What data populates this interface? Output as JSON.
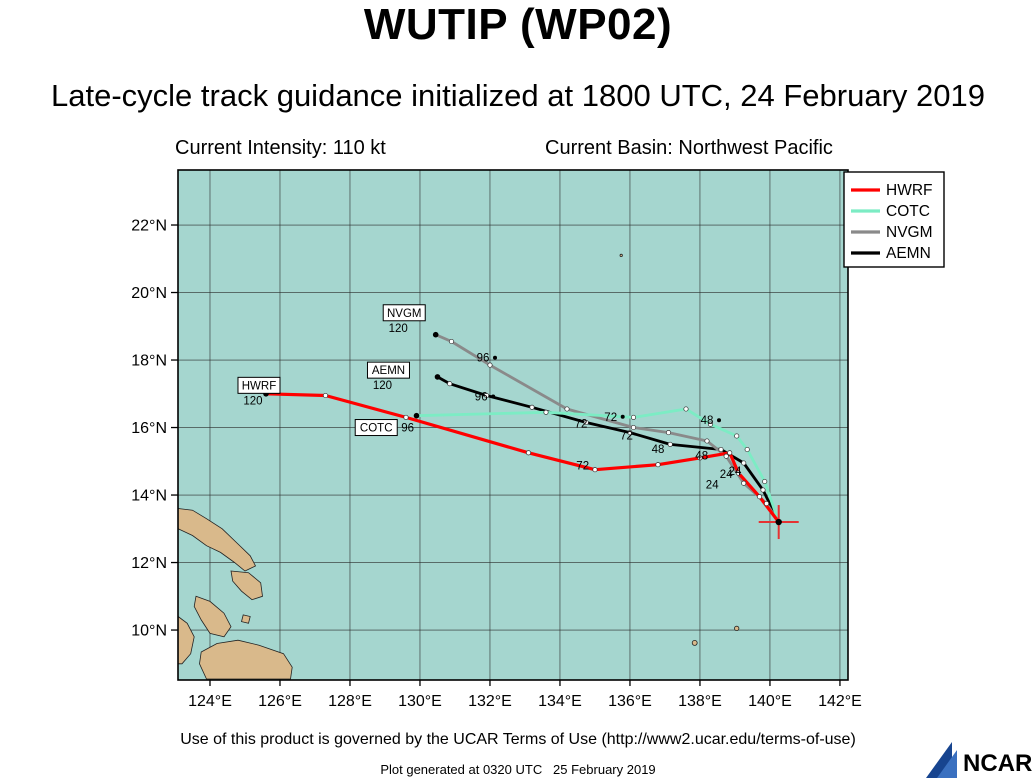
{
  "header": {
    "title": "WUTIP (WP02)",
    "subtitle": "Late-cycle track guidance initialized at 1800 UTC, 24 February 2019",
    "intensity": "Current Intensity: 110 kt",
    "basin": "Current Basin: Northwest Pacific"
  },
  "footer": {
    "terms": "Use of this product is governed by the UCAR Terms of Use (http://www2.ucar.edu/terms-of-use)",
    "generated": "Plot generated at 0320 UTC   25 February 2019",
    "logo_text": "NCAR"
  },
  "chart_data": {
    "type": "line",
    "subtype": "storm-track-map",
    "title": "WUTIP (WP02) late-cycle track guidance",
    "storm_id": "WP02",
    "storm_name": "WUTIP",
    "current_intensity_kt": 110,
    "current_basin": "Northwest Pacific",
    "init_time": "1800 UTC, 24 February 2019",
    "sea_color": "#a5d6cf",
    "land_color": "#d9b98b",
    "x_axis": {
      "suffix": "°E",
      "ticks": [
        124,
        126,
        128,
        130,
        132,
        134,
        136,
        138,
        140,
        142
      ],
      "range": [
        123.086,
        142.23
      ]
    },
    "y_axis": {
      "suffix": "°N",
      "ticks": [
        10,
        12,
        14,
        16,
        18,
        20,
        22
      ],
      "range": [
        8.52,
        23.63
      ]
    },
    "grid": true,
    "legend_position": "top-right",
    "legend": [
      {
        "label": "HWRF",
        "color": "#ff0000"
      },
      {
        "label": "COTC",
        "color": "#7cecc4"
      },
      {
        "label": "NVGM",
        "color": "#8a8a8a"
      },
      {
        "label": "AEMN",
        "color": "#000000"
      }
    ],
    "initial_position": {
      "lon": 140.25,
      "lat": 13.2
    },
    "series": [
      {
        "name": "HWRF",
        "color": "#ff0000",
        "hours": [
          0,
          12,
          24,
          36,
          48,
          60,
          72,
          84,
          96,
          108,
          120
        ],
        "track": [
          [
            140.25,
            13.2
          ],
          [
            139.7,
            13.95
          ],
          [
            139.1,
            14.65
          ],
          [
            138.85,
            15.25
          ],
          [
            138.0,
            15.1
          ],
          [
            136.8,
            14.9
          ],
          [
            135.0,
            14.75
          ],
          [
            133.1,
            15.25
          ],
          [
            129.6,
            16.3
          ],
          [
            127.3,
            16.95
          ],
          [
            125.6,
            17.0
          ]
        ]
      },
      {
        "name": "COTC",
        "color": "#7cecc4",
        "hours": [
          0,
          12,
          24,
          36,
          48,
          60,
          72,
          84,
          96
        ],
        "track": [
          [
            140.25,
            13.2
          ],
          [
            139.85,
            14.4
          ],
          [
            139.35,
            15.35
          ],
          [
            139.05,
            15.75
          ],
          [
            138.3,
            16.1
          ],
          [
            137.6,
            16.55
          ],
          [
            136.1,
            16.3
          ],
          [
            133.6,
            16.45
          ],
          [
            129.9,
            16.35
          ]
        ]
      },
      {
        "name": "NVGM",
        "color": "#8a8a8a",
        "hours": [
          0,
          12,
          24,
          36,
          48,
          60,
          72,
          84,
          96,
          108,
          120
        ],
        "track": [
          [
            140.25,
            13.2
          ],
          [
            139.9,
            13.75
          ],
          [
            139.25,
            14.35
          ],
          [
            138.75,
            15.15
          ],
          [
            138.2,
            15.6
          ],
          [
            137.1,
            15.85
          ],
          [
            136.1,
            16.0
          ],
          [
            134.2,
            16.55
          ],
          [
            132.0,
            17.85
          ],
          [
            130.9,
            18.55
          ],
          [
            130.45,
            18.75
          ]
        ]
      },
      {
        "name": "AEMN",
        "color": "#000000",
        "hours": [
          0,
          12,
          24,
          36,
          48,
          60,
          72,
          84,
          96,
          108,
          120
        ],
        "track": [
          [
            140.25,
            13.2
          ],
          [
            139.8,
            14.15
          ],
          [
            139.25,
            14.95
          ],
          [
            138.6,
            15.35
          ],
          [
            137.15,
            15.5
          ],
          [
            136.0,
            15.85
          ],
          [
            134.75,
            16.15
          ],
          [
            133.2,
            16.6
          ],
          [
            131.9,
            16.95
          ],
          [
            130.85,
            17.3
          ],
          [
            130.5,
            17.5
          ]
        ]
      }
    ],
    "model_labels": [
      {
        "model": "HWRF",
        "hour": "120",
        "lon": 125.4,
        "lat": 17.25,
        "hour_side": "below"
      },
      {
        "model": "COTC",
        "hour": "96",
        "lon": 128.75,
        "lat": 16.0,
        "hour_side": "right"
      },
      {
        "model": "NVGM",
        "hour": "120",
        "lon": 129.55,
        "lat": 19.4,
        "hour_side": "below"
      },
      {
        "model": "AEMN",
        "hour": "120",
        "lon": 129.1,
        "lat": 17.7,
        "hour_side": "below"
      }
    ],
    "annotations": [
      {
        "text": "96",
        "lon": 131.8,
        "lat": 17.95,
        "dot": true
      },
      {
        "text": "96",
        "lon": 131.75,
        "lat": 16.8,
        "dot": true
      },
      {
        "text": "72",
        "lon": 134.6,
        "lat": 16.0
      },
      {
        "text": "72",
        "lon": 135.45,
        "lat": 16.2,
        "dot": true
      },
      {
        "text": "72",
        "lon": 135.9,
        "lat": 15.65
      },
      {
        "text": "72",
        "lon": 134.65,
        "lat": 14.75
      },
      {
        "text": "48",
        "lon": 138.2,
        "lat": 16.1,
        "dot": true
      },
      {
        "text": "48",
        "lon": 136.8,
        "lat": 15.25
      },
      {
        "text": "48",
        "lon": 138.05,
        "lat": 15.05
      },
      {
        "text": "24",
        "lon": 138.35,
        "lat": 14.2
      },
      {
        "text": "24",
        "lon": 138.75,
        "lat": 14.5
      },
      {
        "text": "24",
        "lon": 139.0,
        "lat": 14.6
      }
    ],
    "land_polygons": [
      [
        [
          123.09,
          13.6
        ],
        [
          123.5,
          13.55
        ],
        [
          123.9,
          13.3
        ],
        [
          124.35,
          13.0
        ],
        [
          124.8,
          12.55
        ],
        [
          125.15,
          12.2
        ],
        [
          125.3,
          11.9
        ],
        [
          125.0,
          11.75
        ],
        [
          124.7,
          12.0
        ],
        [
          124.3,
          12.3
        ],
        [
          123.9,
          12.5
        ],
        [
          123.5,
          12.8
        ],
        [
          123.09,
          13.0
        ]
      ],
      [
        [
          124.6,
          11.75
        ],
        [
          125.1,
          11.7
        ],
        [
          125.45,
          11.4
        ],
        [
          125.5,
          11.0
        ],
        [
          125.2,
          10.9
        ],
        [
          124.9,
          11.15
        ],
        [
          124.65,
          11.45
        ]
      ],
      [
        [
          123.6,
          11.0
        ],
        [
          124.0,
          10.85
        ],
        [
          124.4,
          10.5
        ],
        [
          124.6,
          10.1
        ],
        [
          124.4,
          9.8
        ],
        [
          124.0,
          9.9
        ],
        [
          123.75,
          10.3
        ],
        [
          123.55,
          10.7
        ]
      ],
      [
        [
          123.75,
          9.35
        ],
        [
          124.2,
          9.6
        ],
        [
          124.8,
          9.7
        ],
        [
          125.4,
          9.55
        ],
        [
          126.1,
          9.3
        ],
        [
          126.35,
          8.9
        ],
        [
          126.3,
          8.55
        ],
        [
          123.9,
          8.55
        ],
        [
          123.7,
          9.0
        ]
      ],
      [
        [
          124.95,
          10.45
        ],
        [
          125.15,
          10.4
        ],
        [
          125.1,
          10.2
        ],
        [
          124.9,
          10.25
        ]
      ],
      [
        [
          123.09,
          10.4
        ],
        [
          123.35,
          10.2
        ],
        [
          123.55,
          9.8
        ],
        [
          123.45,
          9.3
        ],
        [
          123.2,
          9.0
        ],
        [
          123.09,
          9.0
        ]
      ]
    ],
    "islets": [
      {
        "lon": 137.85,
        "lat": 9.62,
        "r": 2.5
      },
      {
        "lon": 139.05,
        "lat": 10.05,
        "r": 2.2
      },
      {
        "lon": 135.75,
        "lat": 21.1,
        "r": 1.2
      }
    ]
  }
}
